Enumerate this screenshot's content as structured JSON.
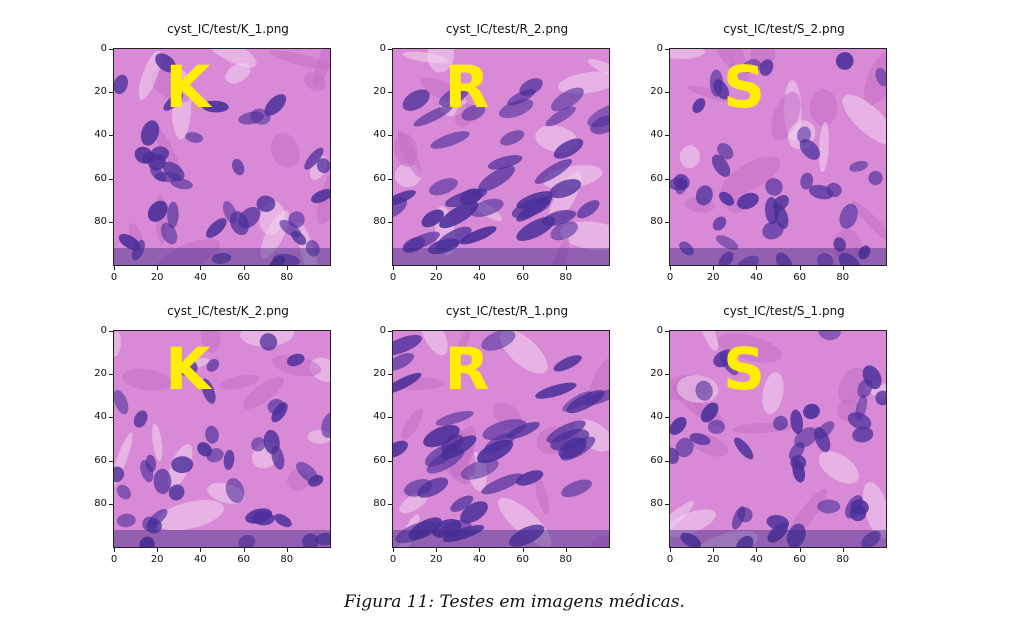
{
  "panels": [
    {
      "title": "cyst_IC/test/K_1.png",
      "label": "K"
    },
    {
      "title": "cyst_IC/test/R_2.png",
      "label": "R"
    },
    {
      "title": "cyst_IC/test/S_2.png",
      "label": "S"
    },
    {
      "title": "cyst_IC/test/K_2.png",
      "label": "K"
    },
    {
      "title": "cyst_IC/test/R_1.png",
      "label": "R"
    },
    {
      "title": "cyst_IC/test/S_1.png",
      "label": "S"
    }
  ],
  "axes": {
    "x_ticks": [
      "0",
      "20",
      "40",
      "60",
      "80"
    ],
    "y_ticks": [
      "0",
      "20",
      "40",
      "60",
      "80"
    ]
  },
  "colors": {
    "label_color": "#ffee00",
    "tissue_base": "#d98ad6",
    "nucleus": "#4a2f9a"
  },
  "caption": "Figura 11: Testes em imagens médicas."
}
